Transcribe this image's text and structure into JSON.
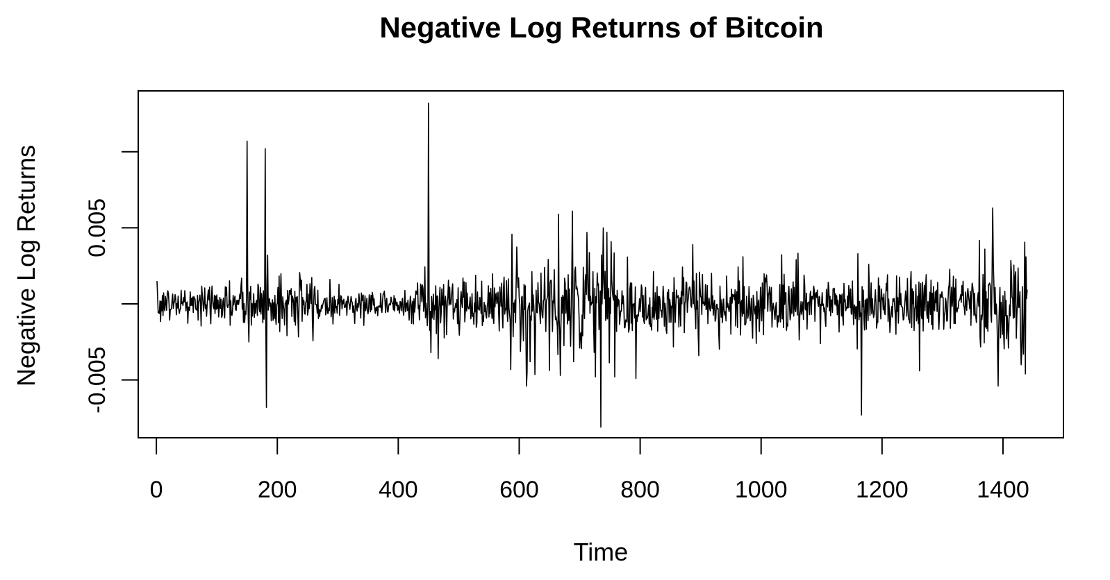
{
  "chart_data": {
    "type": "line",
    "title": "Negative Log Returns of Bitcoin",
    "xlabel": "Time",
    "ylabel": "Negative Log Returns",
    "xlim": [
      -30,
      1500
    ],
    "ylim": [
      -0.0088,
      0.014
    ],
    "grid": false,
    "legend": "none",
    "line_color": "#000000",
    "x_ticks": [
      {
        "value": 0,
        "label": "0"
      },
      {
        "value": 200,
        "label": "200"
      },
      {
        "value": 400,
        "label": "400"
      },
      {
        "value": 600,
        "label": "600"
      },
      {
        "value": 800,
        "label": "800"
      },
      {
        "value": 1000,
        "label": "1000"
      },
      {
        "value": 1200,
        "label": "1200"
      },
      {
        "value": 1400,
        "label": "1400"
      }
    ],
    "y_ticks": [
      {
        "value": -0.005,
        "label": "-0.005"
      },
      {
        "value": 0.0,
        "label": ""
      },
      {
        "value": 0.005,
        "label": "0.005"
      },
      {
        "value": 0.01,
        "label": ""
      }
    ],
    "n": 1440,
    "x_start": 1,
    "segments": [
      {
        "from": 1,
        "to": 140,
        "vol": 0.0006
      },
      {
        "from": 140,
        "to": 270,
        "vol": 0.001
      },
      {
        "from": 270,
        "to": 420,
        "vol": 0.0005
      },
      {
        "from": 420,
        "to": 580,
        "vol": 0.0009
      },
      {
        "from": 580,
        "to": 760,
        "vol": 0.0018
      },
      {
        "from": 760,
        "to": 1080,
        "vol": 0.0011
      },
      {
        "from": 1080,
        "to": 1180,
        "vol": 0.0009
      },
      {
        "from": 1180,
        "to": 1260,
        "vol": 0.001
      },
      {
        "from": 1260,
        "to": 1360,
        "vol": 0.0009
      },
      {
        "from": 1360,
        "to": 1440,
        "vol": 0.0018
      }
    ],
    "spikes": [
      {
        "x": 1,
        "y": 0.0015
      },
      {
        "x": 150,
        "y": 0.0107
      },
      {
        "x": 153,
        "y": -0.0025
      },
      {
        "x": 180,
        "y": 0.0102
      },
      {
        "x": 182,
        "y": -0.0068
      },
      {
        "x": 184,
        "y": 0.0032
      },
      {
        "x": 450,
        "y": 0.0132
      },
      {
        "x": 454,
        "y": -0.0032
      },
      {
        "x": 466,
        "y": -0.0036
      },
      {
        "x": 612,
        "y": -0.0054
      },
      {
        "x": 618,
        "y": -0.0038
      },
      {
        "x": 665,
        "y": 0.0059
      },
      {
        "x": 668,
        "y": -0.0047
      },
      {
        "x": 688,
        "y": 0.0061
      },
      {
        "x": 690,
        "y": -0.0038
      },
      {
        "x": 712,
        "y": 0.0047
      },
      {
        "x": 726,
        "y": -0.0048
      },
      {
        "x": 735,
        "y": -0.0081
      },
      {
        "x": 739,
        "y": 0.005
      },
      {
        "x": 752,
        "y": 0.0041
      },
      {
        "x": 758,
        "y": -0.0048
      },
      {
        "x": 793,
        "y": -0.0049
      },
      {
        "x": 887,
        "y": 0.0039
      },
      {
        "x": 897,
        "y": -0.0034
      },
      {
        "x": 970,
        "y": 0.0031
      },
      {
        "x": 1166,
        "y": -0.0073
      },
      {
        "x": 1160,
        "y": 0.0033
      },
      {
        "x": 1262,
        "y": -0.0044
      },
      {
        "x": 1370,
        "y": 0.0036
      },
      {
        "x": 1383,
        "y": 0.0063
      },
      {
        "x": 1392,
        "y": -0.0054
      },
      {
        "x": 1430,
        "y": -0.004
      },
      {
        "x": 1437,
        "y": -0.0046
      }
    ]
  }
}
